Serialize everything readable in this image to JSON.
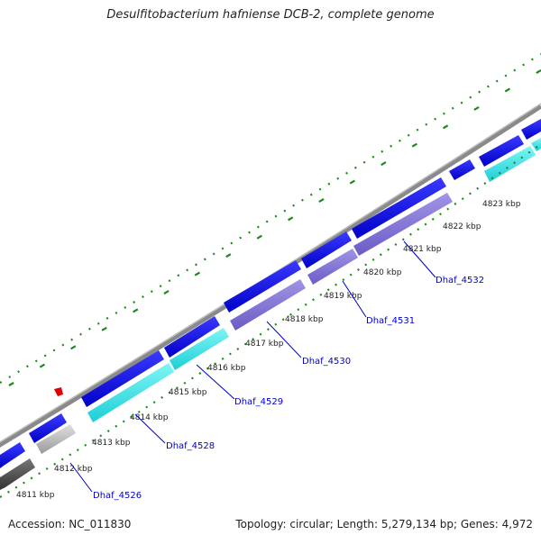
{
  "title": "Desulfitobacterium hafniense DCB-2, complete genome",
  "footer": {
    "accession": "Accession: NC_011830",
    "topology": "Topology: circular; Length: 5,279,134 bp; Genes: 4,972"
  },
  "kbp_labels": [
    "4811 kbp",
    "4812 kbp",
    "4813 kbp",
    "4814 kbp",
    "4815 kbp",
    "4816 kbp",
    "4817 kbp",
    "4818 kbp",
    "4819 kbp",
    "4820 kbp",
    "4821 kbp",
    "4822 kbp",
    "4823 kbp"
  ],
  "gene_labels": [
    "Dhaf_4526",
    "Dhaf_4528",
    "Dhaf_4529",
    "Dhaf_4530",
    "Dhaf_4531",
    "Dhaf_4532"
  ],
  "colors": {
    "forward_gene": "#0000e6",
    "reverse_gene": "#33e0e6",
    "reverse_gene_alt": "#8070d0",
    "pseudo_gene_light": "#c0c0c0",
    "pseudo_gene_dark": "#555555",
    "backbone": "#888888",
    "tick": "#1a8a1a",
    "label_link": "#0000cc",
    "marker": "#e00000"
  }
}
